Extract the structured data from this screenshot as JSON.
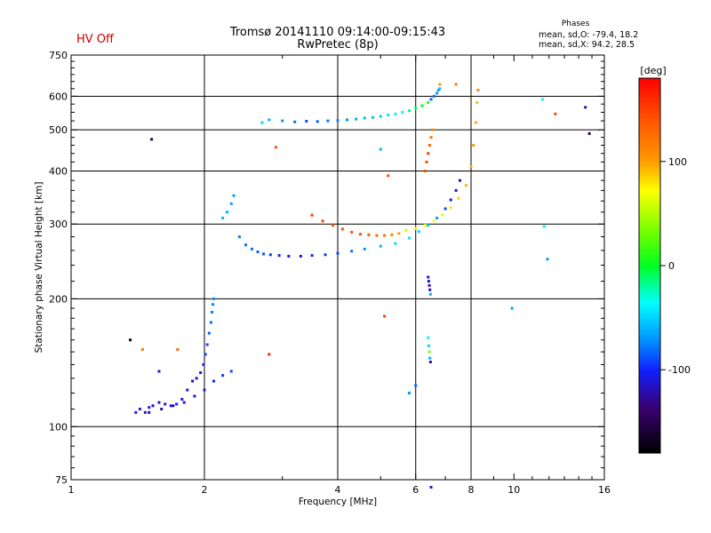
{
  "header": {
    "hv_status": "HV Off",
    "title": "Tromsø 20141110 09:14:00-09:15:43",
    "subtitle": "RwPretec (8p)",
    "phases_heading": "Phases",
    "stats_o": "mean, sd,O: -79.4, 18.2",
    "stats_x": "mean, sd,X: 94.2, 28.5"
  },
  "chart_data": {
    "type": "scatter",
    "title": "Tromsø 20141110 09:14:00-09:15:43",
    "subtitle": "RwPretec (8p)",
    "xlabel": "Frequency [MHz]",
    "ylabel": "Stationary phase Virtual Height [km]",
    "xscale": "log",
    "yscale": "log",
    "xlim": [
      1,
      16
    ],
    "ylim": [
      75,
      750
    ],
    "xticks": [
      1,
      2,
      4,
      6,
      8,
      10,
      16
    ],
    "yticks": [
      75,
      100,
      200,
      300,
      400,
      500,
      600,
      750
    ],
    "grid_x": [
      2,
      4,
      6,
      8
    ],
    "grid_y": [
      100,
      200,
      300,
      400,
      500,
      600
    ],
    "colorbar": {
      "label": "[deg]",
      "ticks": [
        100,
        0,
        -100
      ],
      "range": [
        -180,
        180
      ]
    },
    "series": [
      {
        "x": [
          1.4,
          1.43,
          1.47,
          1.5,
          1.53,
          1.58,
          1.63,
          1.68,
          1.73,
          1.78,
          1.83,
          1.88,
          1.92,
          1.96,
          1.99,
          2.01,
          2.03,
          2.05,
          2.07,
          2.08,
          2.09,
          2.1
        ],
        "y": [
          108,
          110,
          108,
          111,
          112,
          114,
          113,
          112,
          113,
          116,
          122,
          128,
          130,
          134,
          140,
          148,
          156,
          166,
          176,
          186,
          194,
          200
        ],
        "phase": [
          -110,
          -105,
          -112,
          -108,
          -115,
          -120,
          -110,
          -105,
          -100,
          -110,
          -115,
          -120,
          -110,
          -115,
          -100,
          -95,
          -90,
          -85,
          -80,
          -75,
          -72,
          -70
        ]
      },
      {
        "x": [
          2.4,
          2.48,
          2.56,
          2.64,
          2.72,
          2.82,
          2.95,
          3.1,
          3.3,
          3.5,
          3.75,
          4.0,
          4.3,
          4.6,
          5.0,
          5.4,
          5.8,
          6.1,
          6.4,
          6.7,
          7.0,
          7.2,
          7.4,
          7.55
        ],
        "y": [
          280,
          268,
          262,
          258,
          255,
          254,
          253,
          252,
          252,
          253,
          254,
          256,
          259,
          262,
          266,
          270,
          278,
          288,
          298,
          310,
          326,
          342,
          360,
          380
        ],
        "phase": [
          -75,
          -78,
          -80,
          -85,
          -88,
          -95,
          -102,
          -108,
          -105,
          -100,
          -95,
          -90,
          -80,
          -70,
          -60,
          -50,
          -45,
          -48,
          -55,
          -70,
          -90,
          -110,
          -120,
          -125
        ]
      },
      {
        "x": [
          2.2,
          2.25,
          2.3,
          2.33
        ],
        "y": [
          310,
          320,
          335,
          350
        ],
        "phase": [
          -60,
          -62,
          -65,
          -68
        ]
      },
      {
        "x": [
          3.5,
          3.7,
          3.9,
          4.1,
          4.3,
          4.5,
          4.7,
          4.9,
          5.1,
          5.3,
          5.5
        ],
        "y": [
          315,
          305,
          298,
          292,
          287,
          284,
          283,
          282,
          282,
          283,
          285
        ],
        "phase": [
          150,
          148,
          146,
          144,
          140,
          138,
          135,
          130,
          125,
          115,
          100
        ]
      },
      {
        "x": [
          5.7,
          6.0,
          6.3,
          6.6,
          6.9,
          7.2,
          7.5,
          7.8,
          8.0,
          8.1,
          8.2,
          8.25
        ],
        "y": [
          290,
          293,
          298,
          305,
          315,
          328,
          345,
          370,
          410,
          460,
          520,
          580
        ],
        "phase": [
          60,
          65,
          70,
          72,
          75,
          80,
          85,
          90,
          95,
          100,
          95,
          90
        ]
      },
      {
        "x": [
          2.7,
          2.8,
          3.0,
          3.2,
          3.4,
          3.6,
          3.8,
          4.0,
          4.2,
          4.4,
          4.6,
          4.8,
          5.0,
          5.2,
          5.4,
          5.6,
          5.8,
          6.0,
          6.2,
          6.4
        ],
        "y": [
          520,
          528,
          525,
          522,
          524,
          523,
          525,
          526,
          528,
          530,
          533,
          535,
          538,
          542,
          545,
          550,
          555,
          562,
          570,
          580
        ],
        "phase": [
          -50,
          -60,
          -70,
          -80,
          -90,
          -85,
          -80,
          -75,
          -70,
          -65,
          -60,
          -55,
          -50,
          -45,
          -40,
          -30,
          -20,
          -10,
          0,
          10
        ]
      },
      {
        "x": [
          6.5,
          6.6,
          6.7,
          6.75,
          6.8
        ],
        "y": [
          590,
          600,
          610,
          620,
          625
        ],
        "phase": [
          -85,
          -80,
          -70,
          -65,
          -60
        ]
      },
      {
        "x": [
          6.3,
          6.35,
          6.4,
          6.45,
          6.5,
          6.55
        ],
        "y": [
          400,
          420,
          440,
          460,
          480,
          500
        ],
        "phase": [
          140,
          145,
          150,
          130,
          120,
          110
        ]
      },
      {
        "x": [
          6.4,
          6.42,
          6.44,
          6.46,
          6.48
        ],
        "y": [
          225,
          220,
          215,
          210,
          205
        ],
        "phase": [
          -105,
          -110,
          -115,
          -120,
          -60
        ]
      },
      {
        "x": [
          6.4,
          6.42,
          6.44,
          6.46,
          6.48
        ],
        "y": [
          162,
          155,
          150,
          145,
          142
        ],
        "phase": [
          -40,
          -50,
          40,
          -60,
          -120
        ]
      },
      {
        "x": [
          1.5,
          1.6,
          1.7,
          1.8,
          1.9,
          2.0,
          2.1,
          2.2,
          2.3
        ],
        "y": [
          108,
          110,
          112,
          114,
          118,
          122,
          128,
          132,
          135
        ],
        "phase": [
          -130,
          -125,
          -120,
          -115,
          -110,
          -105,
          -100,
          -95,
          -90
        ]
      },
      {
        "x": [
          1.36,
          1.45,
          1.52,
          1.58,
          1.74,
          2.8,
          2.9,
          5.1,
          5.0,
          5.2,
          5.8,
          6.0,
          6.5,
          6.8,
          7.4,
          8.3,
          9.9,
          11.6,
          11.7,
          11.9,
          12.4,
          14.5,
          14.8
        ],
        "y": [
          160,
          152,
          475,
          135,
          152,
          148,
          455,
          182,
          450,
          390,
          120,
          125,
          72,
          640,
          640,
          620,
          190,
          590,
          296,
          248,
          545,
          565,
          490
        ],
        "phase": [
          -170,
          120,
          -150,
          -110,
          130,
          160,
          140,
          150,
          -60,
          140,
          -70,
          -85,
          -105,
          100,
          120,
          110,
          -65,
          -40,
          -40,
          -70,
          150,
          -120,
          -150
        ]
      }
    ]
  }
}
